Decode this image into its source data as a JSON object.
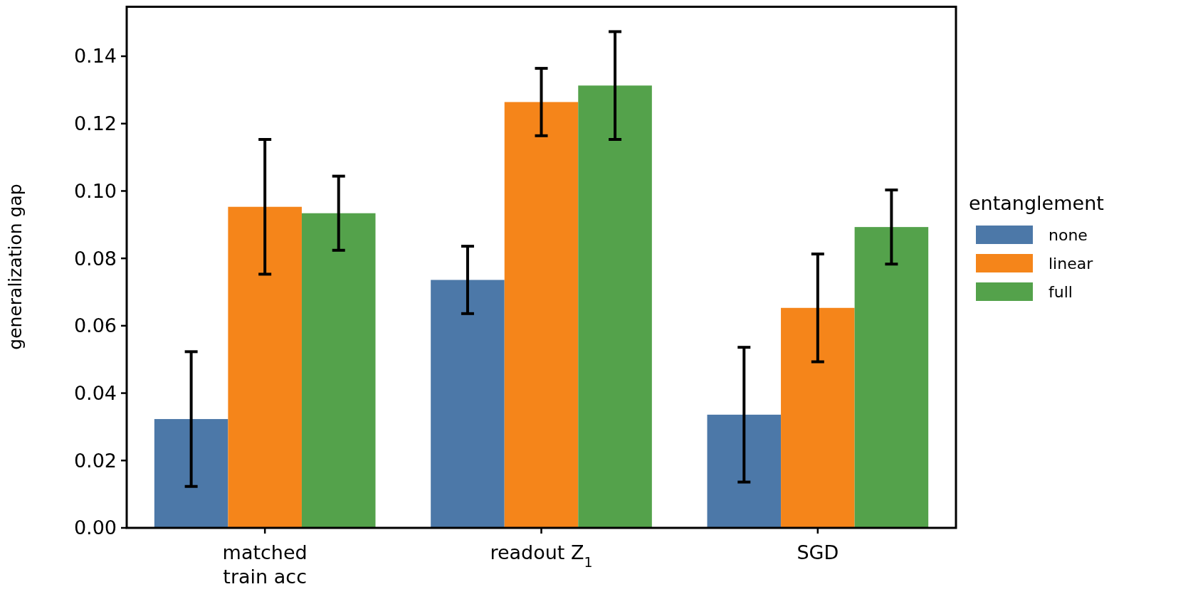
{
  "chart_data": {
    "type": "bar",
    "ylabel": "generalization gap",
    "legend_title": "entanglement",
    "legend": "right",
    "categories": [
      "matched\ntrain acc",
      "readout Z$_{1}$",
      "SGD"
    ],
    "series": [
      {
        "name": "none",
        "color": "#4c78a8",
        "values": [
          0.0323,
          0.0736,
          0.0336
        ],
        "errors": [
          0.02,
          0.01,
          0.02
        ]
      },
      {
        "name": "linear",
        "color": "#f5851a",
        "values": [
          0.0953,
          0.1264,
          0.0653
        ],
        "errors": [
          0.02,
          0.01,
          0.016
        ]
      },
      {
        "name": "full",
        "color": "#54a24b",
        "values": [
          0.0934,
          0.1313,
          0.0893
        ],
        "errors": [
          0.011,
          0.016,
          0.011
        ]
      }
    ],
    "ylim": [
      0,
      0.155
    ],
    "yticks": [
      {
        "value": 0,
        "label": "0.00"
      },
      {
        "value": 0.02,
        "label": "0.02"
      },
      {
        "value": 0.04,
        "label": "0.04"
      },
      {
        "value": 0.06,
        "label": "0.06"
      },
      {
        "value": 0.08,
        "label": "0.08"
      },
      {
        "value": 0.1,
        "label": "0.10"
      },
      {
        "value": 0.12,
        "label": "0.12"
      },
      {
        "value": 0.14,
        "label": "0.14"
      }
    ],
    "grid": false
  }
}
